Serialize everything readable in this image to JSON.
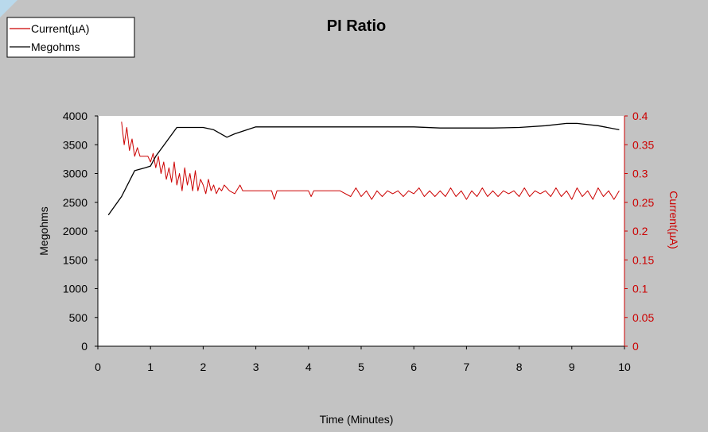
{
  "chart_data": {
    "type": "line",
    "title": "PI Ratio",
    "xlabel": "Time (Minutes)",
    "ylabel_left": "Megohms",
    "ylabel_right": "Current(µA)",
    "xlim": [
      0,
      10
    ],
    "ylim_left": [
      0,
      4000
    ],
    "ylim_right": [
      0,
      0.4
    ],
    "x_ticks": [
      "0",
      "1",
      "2",
      "3",
      "4",
      "5",
      "6",
      "7",
      "8",
      "9",
      "10"
    ],
    "y_left_ticks": [
      "0",
      "500",
      "1000",
      "1500",
      "2000",
      "2500",
      "3000",
      "3500",
      "4000"
    ],
    "y_right_ticks": [
      "0",
      "0.05",
      "0.1",
      "0.15",
      "0.2",
      "0.25",
      "0.3",
      "0.35",
      "0.4"
    ],
    "legend": {
      "position": "top-left",
      "entries": [
        "Current(µA)",
        "Megohms"
      ]
    },
    "grid": false,
    "series": [
      {
        "name": "Megohms",
        "axis": "left",
        "color": "#000000",
        "x": [
          0.2,
          0.45,
          0.7,
          0.9,
          1.0,
          1.1,
          1.3,
          1.5,
          1.8,
          2.0,
          2.2,
          2.45,
          2.6,
          2.8,
          3.0,
          3.3,
          4.0,
          5.0,
          6.0,
          6.5,
          7.0,
          7.5,
          8.0,
          8.5,
          8.9,
          9.1,
          9.5,
          9.9
        ],
        "y": [
          2280,
          2600,
          3050,
          3100,
          3130,
          3300,
          3550,
          3800,
          3800,
          3800,
          3760,
          3630,
          3690,
          3750,
          3810,
          3810,
          3810,
          3810,
          3810,
          3790,
          3790,
          3790,
          3800,
          3830,
          3870,
          3870,
          3830,
          3760
        ]
      },
      {
        "name": "Current(µA)",
        "axis": "right",
        "color": "#cc0000",
        "x": [
          0.45,
          0.5,
          0.55,
          0.6,
          0.65,
          0.7,
          0.75,
          0.8,
          0.85,
          0.9,
          0.95,
          1.0,
          1.05,
          1.1,
          1.15,
          1.2,
          1.25,
          1.3,
          1.35,
          1.4,
          1.45,
          1.5,
          1.55,
          1.6,
          1.65,
          1.7,
          1.75,
          1.8,
          1.85,
          1.9,
          1.95,
          2.0,
          2.05,
          2.1,
          2.15,
          2.2,
          2.25,
          2.3,
          2.35,
          2.4,
          2.5,
          2.6,
          2.7,
          2.75,
          2.8,
          3.0,
          3.3,
          3.35,
          3.4,
          3.6,
          4.0,
          4.05,
          4.1,
          4.4,
          4.6,
          4.8,
          4.9,
          5.0,
          5.1,
          5.2,
          5.3,
          5.4,
          5.5,
          5.6,
          5.7,
          5.8,
          5.9,
          6.0,
          6.1,
          6.2,
          6.3,
          6.4,
          6.5,
          6.6,
          6.7,
          6.8,
          6.9,
          7.0,
          7.1,
          7.2,
          7.3,
          7.4,
          7.5,
          7.6,
          7.7,
          7.8,
          7.9,
          8.0,
          8.1,
          8.2,
          8.3,
          8.4,
          8.5,
          8.6,
          8.7,
          8.8,
          8.9,
          9.0,
          9.1,
          9.2,
          9.3,
          9.4,
          9.5,
          9.6,
          9.7,
          9.8,
          9.9
        ],
        "y": [
          0.39,
          0.35,
          0.38,
          0.34,
          0.36,
          0.33,
          0.345,
          0.33,
          0.33,
          0.33,
          0.33,
          0.32,
          0.335,
          0.31,
          0.33,
          0.3,
          0.32,
          0.29,
          0.31,
          0.285,
          0.32,
          0.28,
          0.3,
          0.27,
          0.31,
          0.28,
          0.3,
          0.27,
          0.305,
          0.27,
          0.29,
          0.28,
          0.265,
          0.29,
          0.27,
          0.28,
          0.265,
          0.275,
          0.27,
          0.28,
          0.27,
          0.265,
          0.28,
          0.27,
          0.27,
          0.27,
          0.27,
          0.255,
          0.27,
          0.27,
          0.27,
          0.26,
          0.27,
          0.27,
          0.27,
          0.26,
          0.275,
          0.26,
          0.27,
          0.255,
          0.27,
          0.26,
          0.27,
          0.265,
          0.27,
          0.26,
          0.27,
          0.265,
          0.275,
          0.26,
          0.27,
          0.26,
          0.27,
          0.26,
          0.275,
          0.26,
          0.27,
          0.255,
          0.27,
          0.26,
          0.275,
          0.26,
          0.27,
          0.26,
          0.27,
          0.265,
          0.27,
          0.26,
          0.275,
          0.26,
          0.27,
          0.265,
          0.27,
          0.26,
          0.275,
          0.26,
          0.27,
          0.255,
          0.275,
          0.26,
          0.27,
          0.255,
          0.275,
          0.26,
          0.27,
          0.255,
          0.27
        ]
      }
    ]
  }
}
